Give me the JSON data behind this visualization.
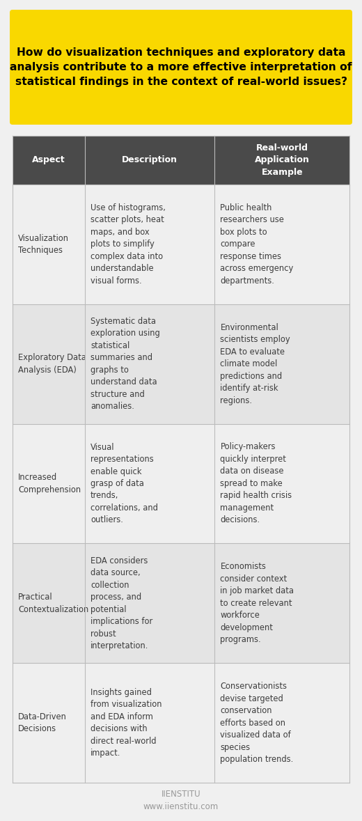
{
  "title_line1": "How do visualization techniques and exploratory data",
  "title_line2": "analysis contribute to a more effective interpretation of",
  "title_line3": "statistical findings in the context of real-world issues?",
  "title_bg": "#F9D800",
  "title_color": "#000000",
  "header_bg": "#4A4A4A",
  "header_color": "#FFFFFF",
  "header_labels": [
    "Aspect",
    "Description",
    "Real-world\nApplication\nExample"
  ],
  "row_bg_odd": "#EFEFEF",
  "row_bg_even": "#E4E4E4",
  "text_color": "#3D3D3D",
  "border_color": "#BBBBBB",
  "footer_line1": "IIENSTITU",
  "footer_line2": "www.iienstitu.com",
  "footer_color": "#999999",
  "rows": [
    {
      "aspect": "Visualization\nTechniques",
      "description": "Use of histograms,\nscatter plots, heat\nmaps, and box\nplots to simplify\ncomplex data into\nunderstandable\nvisual forms.",
      "example": "Public health\nresearchers use\nbox plots to\ncompare\nresponse times\nacross emergency\ndepartments."
    },
    {
      "aspect": "Exploratory Data\nAnalysis (EDA)",
      "description": "Systematic data\nexploration using\nstatistical\nsummaries and\ngraphs to\nunderstand data\nstructure and\nanomalies.",
      "example": "Environmental\nscientists employ\nEDA to evaluate\nclimate model\npredictions and\nidentify at-risk\nregions."
    },
    {
      "aspect": "Increased\nComprehension",
      "description": "Visual\nrepresentations\nenable quick\ngrasp of data\ntrends,\ncorrelations, and\noutliers.",
      "example": "Policy-makers\nquickly interpret\ndata on disease\nspread to make\nrapid health crisis\nmanagement\ndecisions."
    },
    {
      "aspect": "Practical\nContextualization",
      "description": "EDA considers\ndata source,\ncollection\nprocess, and\npotential\nimplications for\nrobust\ninterpretation.",
      "example": "Economists\nconsider context\nin job market data\nto create relevant\nworkforce\ndevelopment\nprograms."
    },
    {
      "aspect": "Data-Driven\nDecisions",
      "description": "Insights gained\nfrom visualization\nand EDA inform\ndecisions with\ndirect real-world\nimpact.",
      "example": "Conservationists\ndevise targeted\nconservation\nefforts based on\nvisualized data of\nspecies\npopulation trends."
    }
  ],
  "bg_color": "#F0F0F0"
}
